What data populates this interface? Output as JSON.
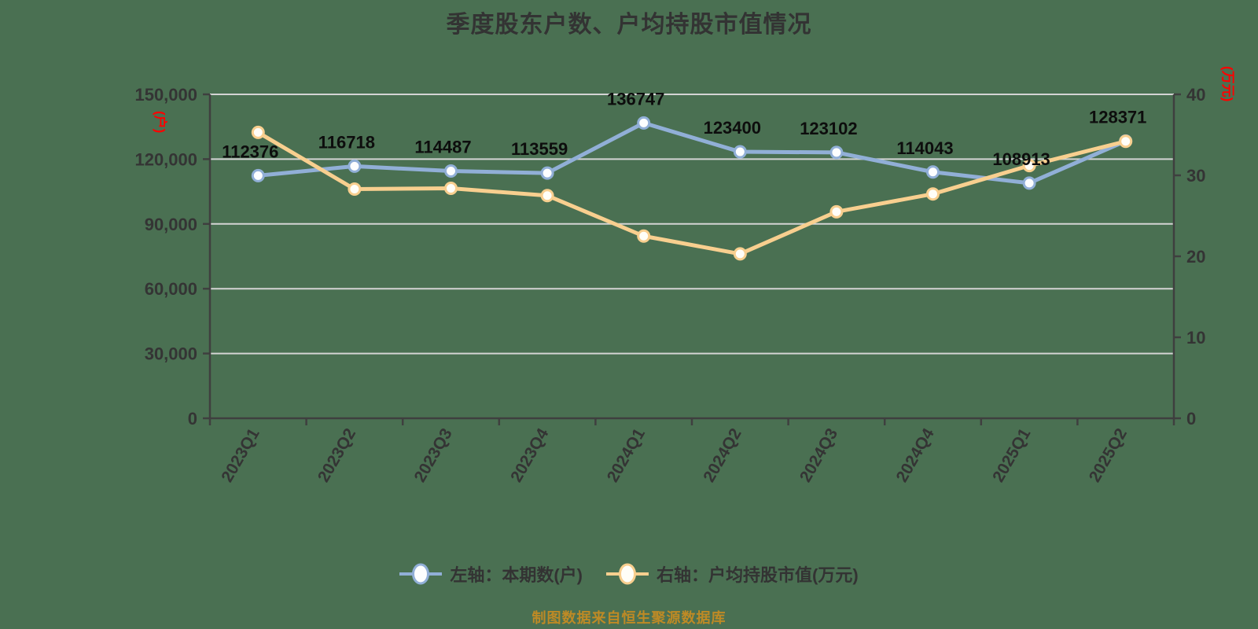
{
  "chart_data": {
    "type": "line",
    "title": "季度股东户数、户均持股市值情况",
    "source_note": "制图数据来自恒生聚源数据库",
    "categories": [
      "2023Q1",
      "2023Q2",
      "2023Q3",
      "2023Q4",
      "2024Q1",
      "2024Q2",
      "2024Q3",
      "2024Q4",
      "2025Q1",
      "2025Q2"
    ],
    "series": [
      {
        "name": "左轴：本期数(户)",
        "axis": "left",
        "color": "#91AFD7",
        "marker_fill": "#FDFEFF",
        "values": [
          112376,
          116718,
          114487,
          113559,
          136747,
          123400,
          123102,
          114043,
          108913,
          128371
        ],
        "point_labels": [
          "112376",
          "116718",
          "114487",
          "113559",
          "136747",
          "123400",
          "123102",
          "114043",
          "108913",
          "128371"
        ]
      },
      {
        "name": "右轴：户均持股市值(万元)",
        "axis": "right",
        "color": "#F8CF8F",
        "marker_fill": "#FFFEF8",
        "values": [
          35.3,
          28.3,
          28.4,
          27.5,
          22.5,
          20.3,
          25.5,
          27.7,
          31.2,
          34.2
        ],
        "point_labels": null
      }
    ],
    "left_axis": {
      "unit": "(户)",
      "min": 0,
      "max": 150000,
      "tick_step": 30000,
      "tick_labels": [
        "0",
        "30,000",
        "60,000",
        "90,000",
        "120,000",
        "150,000"
      ]
    },
    "right_axis": {
      "unit": "(万元)",
      "min": 0,
      "max": 40,
      "tick_step": 10,
      "tick_labels": [
        "0",
        "10",
        "20",
        "30",
        "40"
      ]
    },
    "grid": true,
    "legend_position": "bottom",
    "x_label_rotation_deg": 60
  },
  "colors": {
    "background": "#4A7052",
    "grid": "#D4D4D4",
    "axis": "#3F3F3F",
    "tick_text": "#343434",
    "data_label": "#0D0D0D",
    "title_text": "#333333",
    "unit_text": "#FF0000",
    "source_text": "#BE8A25"
  }
}
